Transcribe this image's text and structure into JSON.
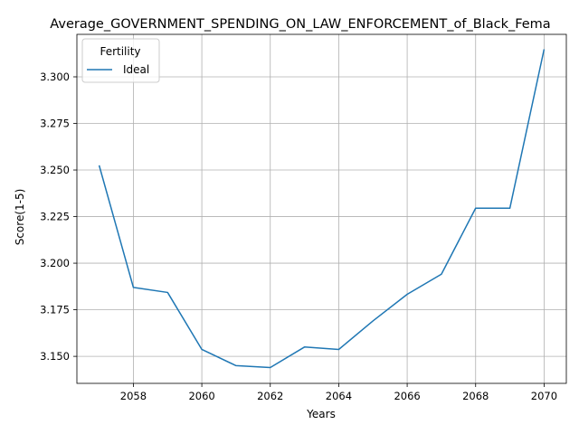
{
  "chart_data": {
    "type": "line",
    "title": "Average_GOVERNMENT_SPENDING_ON_LAW_ENFORCEMENT_of_Black_Fema",
    "xlabel": "Years",
    "ylabel": "Score(1-5)",
    "xlim": [
      2056.35,
      2070.65
    ],
    "ylim": [
      3.1355,
      3.3228
    ],
    "x_ticks": [
      "2058",
      "2060",
      "2062",
      "2064",
      "2066",
      "2068",
      "2070"
    ],
    "y_ticks": [
      "3.150",
      "3.175",
      "3.200",
      "3.225",
      "3.250",
      "3.275",
      "3.300"
    ],
    "grid": true,
    "legend": {
      "title": "Fertility",
      "placement": "top-left"
    },
    "series": [
      {
        "name": "Ideal",
        "color": "#1f77b4",
        "x": [
          2057,
          2058,
          2059,
          2060,
          2061,
          2062,
          2063,
          2064,
          2065,
          2066,
          2067,
          2068,
          2069,
          2070
        ],
        "y": [
          3.2525,
          3.187,
          3.1843,
          3.1537,
          3.145,
          3.144,
          3.155,
          3.1537,
          3.169,
          3.1833,
          3.1941,
          3.2295,
          3.2295,
          3.3148
        ]
      }
    ]
  }
}
